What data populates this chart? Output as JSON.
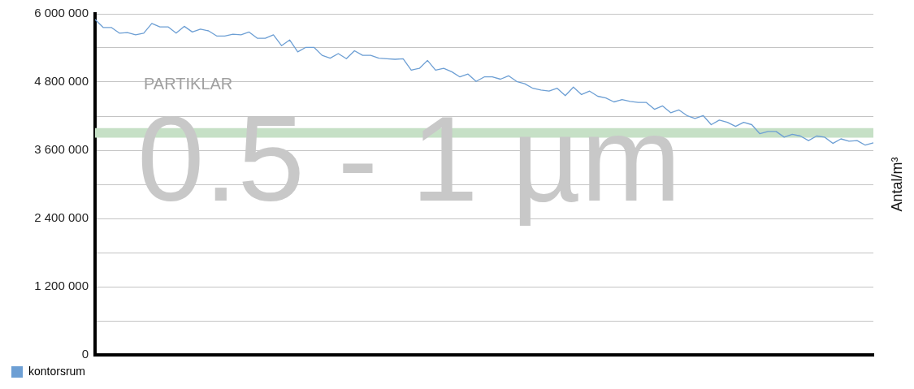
{
  "chart_data": {
    "type": "line",
    "ylabel": "Antal/m³",
    "categories": [
      null,
      null,
      null,
      null,
      null,
      null,
      null,
      null,
      null,
      null,
      null,
      null,
      null,
      null,
      null,
      null,
      null,
      null,
      null,
      null,
      null,
      null,
      null,
      null,
      null,
      null,
      null,
      null,
      null,
      null,
      null,
      null,
      null,
      null,
      null,
      null,
      null,
      null,
      null,
      null,
      null,
      null,
      null,
      null,
      null,
      null,
      null,
      null,
      null,
      null,
      null,
      null,
      null,
      null,
      null,
      null,
      null,
      null,
      null,
      null,
      null,
      null,
      null,
      null,
      null,
      null,
      null,
      null,
      null,
      null,
      null,
      null,
      null,
      null,
      null,
      null,
      null,
      null,
      null,
      null,
      null,
      null,
      null,
      null,
      null,
      null,
      null,
      null,
      null,
      null,
      null,
      null,
      null,
      null,
      null,
      null,
      null
    ],
    "series": [
      {
        "name": "kontorsrum",
        "color": "#6d9fd4",
        "values": [
          5900000,
          5760000,
          5760000,
          5660000,
          5670000,
          5630000,
          5660000,
          5830000,
          5770000,
          5770000,
          5660000,
          5780000,
          5680000,
          5730000,
          5700000,
          5610000,
          5610000,
          5640000,
          5630000,
          5680000,
          5570000,
          5570000,
          5630000,
          5440000,
          5540000,
          5330000,
          5410000,
          5410000,
          5270000,
          5220000,
          5300000,
          5210000,
          5350000,
          5270000,
          5270000,
          5220000,
          5210000,
          5200000,
          5210000,
          5010000,
          5040000,
          5180000,
          5010000,
          5040000,
          4980000,
          4890000,
          4940000,
          4810000,
          4890000,
          4890000,
          4850000,
          4910000,
          4810000,
          4770000,
          4690000,
          4660000,
          4640000,
          4690000,
          4560000,
          4710000,
          4580000,
          4640000,
          4550000,
          4520000,
          4450000,
          4490000,
          4460000,
          4440000,
          4440000,
          4320000,
          4380000,
          4260000,
          4310000,
          4210000,
          4160000,
          4210000,
          4050000,
          4130000,
          4090000,
          4020000,
          4090000,
          4050000,
          3890000,
          3930000,
          3930000,
          3830000,
          3880000,
          3850000,
          3770000,
          3850000,
          3830000,
          3720000,
          3800000,
          3760000,
          3770000,
          3690000,
          3730000
        ]
      }
    ],
    "ylim": [
      0,
      6000000
    ],
    "yticks": [
      {
        "value": 0,
        "label": "0"
      },
      {
        "value": 600000,
        "label": null
      },
      {
        "value": 1200000,
        "label": "1 200 000"
      },
      {
        "value": 1800000,
        "label": null
      },
      {
        "value": 2400000,
        "label": "2 400 000"
      },
      {
        "value": 3000000,
        "label": null
      },
      {
        "value": 3600000,
        "label": "3 600 000"
      },
      {
        "value": 4200000,
        "label": null
      },
      {
        "value": 4800000,
        "label": "4 800 000"
      },
      {
        "value": 5400000,
        "label": null
      },
      {
        "value": 6000000,
        "label": "6 000 000"
      }
    ],
    "bands": [
      {
        "axis": "y",
        "from": 3820000,
        "to": 3990000,
        "color": "#c6e0c6"
      }
    ],
    "annotations": [
      "PARTIKLAR",
      "0.5 - 1 µm"
    ],
    "grid": "y",
    "legend": "bottom",
    "marker": "none",
    "line_style": "solid"
  }
}
